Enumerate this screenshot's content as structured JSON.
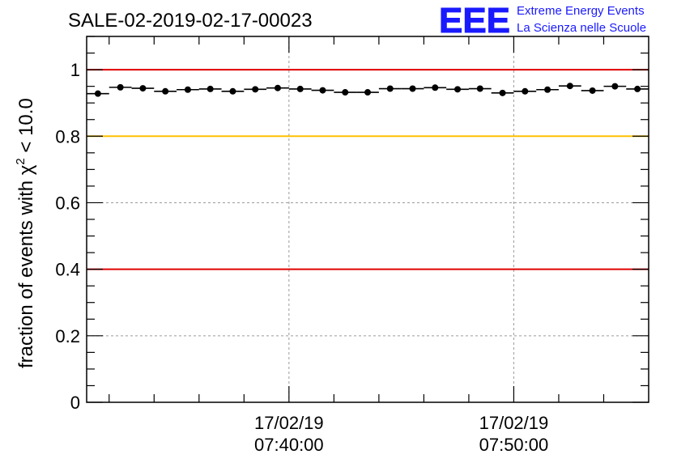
{
  "title": "SALE-02-2019-02-17-00023",
  "logo": {
    "mark": "EEE",
    "line1": "Extreme Energy Events",
    "line2": "La Scienza nelle Scuole",
    "color": "#1a1aff"
  },
  "chart_data": {
    "type": "scatter",
    "title": "SALE-02-2019-02-17-00023",
    "ylabel": "fraction of events with χ² < 10.0",
    "ylabel_parts": {
      "prefix": "fraction of events with ",
      "symbol": "χ",
      "superscript": "2",
      "suffix": " < 10.0"
    },
    "ylim": [
      0,
      1.1
    ],
    "y_ticks": [
      {
        "value": 0,
        "label": "0"
      },
      {
        "value": 0.2,
        "label": "0.2"
      },
      {
        "value": 0.4,
        "label": "0.4"
      },
      {
        "value": 0.6,
        "label": "0.6"
      },
      {
        "value": 0.8,
        "label": "0.8"
      },
      {
        "value": 1,
        "label": "1"
      }
    ],
    "x_range_minutes": [
      7.5,
      32.5
    ],
    "x_ticks": [
      {
        "value": 16.5,
        "date": "17/02/19",
        "time": "07:40:00"
      },
      {
        "value": 26.5,
        "date": "17/02/19",
        "time": "07:50:00"
      }
    ],
    "grid": true,
    "reference_lines": [
      {
        "y": 1.0,
        "color": "#e00000"
      },
      {
        "y": 0.8,
        "color": "#ffc000"
      },
      {
        "y": 0.4,
        "color": "#e00000"
      }
    ],
    "bin_width_minutes": 1,
    "series": [
      {
        "marker_color": "#000000",
        "x_minutes": [
          8,
          9,
          10,
          11,
          12,
          13,
          14,
          15,
          16,
          17,
          18,
          19,
          20,
          21,
          22,
          23,
          24,
          25,
          26,
          27,
          28,
          29,
          30,
          31,
          32
        ],
        "values": [
          0.928,
          0.947,
          0.944,
          0.935,
          0.94,
          0.942,
          0.935,
          0.941,
          0.945,
          0.942,
          0.938,
          0.932,
          0.932,
          0.943,
          0.943,
          0.946,
          0.941,
          0.943,
          0.93,
          0.935,
          0.94,
          0.951,
          0.937,
          0.95,
          0.942
        ]
      }
    ]
  }
}
